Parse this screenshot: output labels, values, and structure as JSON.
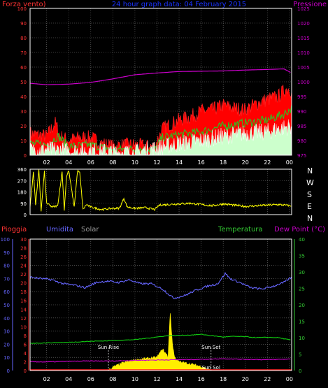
{
  "colors": {
    "background": "#000000",
    "frame": "#ffffff",
    "grid": "#777777",
    "wind": "#ff2020",
    "wind_fill": "#ff0000",
    "gust_band": "#22cc22",
    "gust_fill": "#ccffcc",
    "pressure": "#cc00cc",
    "direction": "#ffff00",
    "humidity": "#6666ff",
    "temperature": "#11cc11",
    "dew_point": "#cc00cc",
    "rain": "#ff2222",
    "solar": "#ffee00",
    "title": "#1a33ff",
    "left_axis_1": "#ff3333",
    "right_axis_1": "#cc00cc",
    "rain_axis": "#ff3333",
    "hum_axis": "#6666ff",
    "temp_axis": "#33cc33",
    "sun_marker": "#ffffff"
  },
  "header": {
    "left_label": "Forza vento)",
    "title": "24 hour graph data: 04 February 2015",
    "right_label": "Pressione"
  },
  "compass": [
    "N",
    "W",
    "S",
    "E",
    "N"
  ],
  "legend2": {
    "pioggia": "Pioggia",
    "umidita": "Umidita",
    "solar": "Solar",
    "temperatura": "Temperatura",
    "dew": "Dew Point (°C)"
  },
  "sun": {
    "rise_label": "Sun Rise",
    "set_label": "Sun Set",
    "solar_label": "Sun Sol",
    "rise_hour": 7.6,
    "set_hour": 16.9
  },
  "chart_data": [
    {
      "type": "area",
      "name": "wind_pressure_panel",
      "x_ticks": [
        "02",
        "04",
        "06",
        "08",
        "10",
        "12",
        "14",
        "16",
        "18",
        "20",
        "22",
        "00"
      ],
      "x_range_hours": [
        0.5,
        24.2
      ],
      "left_axis": {
        "label": "Forza vento)",
        "ticks": [
          0,
          10,
          20,
          30,
          40,
          50,
          60,
          70,
          80,
          90,
          100
        ],
        "range": [
          0,
          100
        ]
      },
      "right_axis": {
        "label": "Pressione",
        "ticks": [
          975,
          980,
          985,
          990,
          995,
          1000,
          1005,
          1010,
          1015,
          1020,
          1025
        ],
        "range": [
          975,
          1025
        ]
      },
      "series": [
        {
          "name": "Pressione",
          "axis": "right",
          "hours": [
            0.5,
            2,
            4,
            6,
            8,
            10,
            12,
            14,
            16,
            18,
            20,
            22,
            23.5,
            24.2
          ],
          "values": [
            999.5,
            999,
            999.2,
            999.8,
            1001,
            1002.4,
            1003,
            1003.5,
            1003.6,
            1003.7,
            1004,
            1004.2,
            1004.4,
            1003
          ]
        },
        {
          "axis": "left",
          "hours": [
            0.5,
            1,
            2,
            2.8,
            3.2,
            4,
            5,
            6,
            7,
            8,
            9,
            10,
            11,
            11.8,
            12.5,
            13,
            14,
            15,
            16,
            17,
            18,
            19,
            20,
            21,
            22,
            23,
            23.5,
            24,
            24.2
          ],
          "values": [
            15,
            14,
            13,
            22,
            13,
            10,
            12,
            12,
            8,
            6,
            7,
            7,
            6,
            6,
            18,
            20,
            24,
            26,
            30,
            31,
            34,
            32,
            31,
            35,
            38,
            40,
            44,
            46,
            42
          ]
        },
        {
          "axis": "left",
          "hours": [
            0.5,
            2,
            3,
            4,
            6,
            8,
            10,
            11.8,
            12.5,
            14,
            16,
            18,
            20,
            22,
            23.5,
            24.2
          ],
          "values": [
            8,
            7,
            13,
            6,
            7,
            4,
            4,
            4,
            12,
            14,
            16,
            20,
            22,
            24,
            28,
            32
          ]
        },
        {
          "axis": "left",
          "hours": [
            0.5,
            2,
            4,
            6,
            8,
            10,
            12,
            14,
            16,
            18,
            20,
            22,
            24.2
          ],
          "values": [
            3,
            4,
            3,
            3,
            2,
            2,
            5,
            8,
            10,
            13,
            15,
            16,
            20
          ]
        }
      ]
    },
    {
      "type": "line",
      "name": "wind_direction_panel",
      "x_ticks": [
        "02",
        "04",
        "06",
        "08",
        "10",
        "12",
        "14",
        "16",
        "18",
        "20",
        "22",
        "00"
      ],
      "left_axis": {
        "ticks": [
          0,
          90,
          180,
          270,
          360
        ],
        "range": [
          0,
          360
        ]
      },
      "right_axis": {
        "ticks": [
          "N",
          "W",
          "S",
          "E",
          "N"
        ]
      },
      "series": [
        {
          "hours": [
            0.5,
            0.8,
            1.0,
            1.3,
            1.5,
            1.8,
            2.0,
            2.5,
            3.0,
            3.4,
            3.6,
            3.8,
            4.0,
            4.5,
            4.8,
            5.0,
            5.3,
            5.6,
            6.0,
            7.0,
            8.0,
            8.6,
            9.0,
            9.3,
            10.0,
            11.0,
            11.8,
            12.2,
            13,
            14,
            15,
            16,
            17,
            18,
            19,
            20,
            21,
            22,
            23,
            24.2
          ],
          "values": [
            60,
            340,
            80,
            350,
            30,
            340,
            90,
            60,
            70,
            340,
            40,
            300,
            350,
            60,
            350,
            330,
            40,
            80,
            60,
            40,
            50,
            50,
            130,
            60,
            50,
            55,
            40,
            75,
            80,
            85,
            90,
            80,
            70,
            85,
            75,
            65,
            70,
            75,
            80,
            70
          ]
        }
      ]
    },
    {
      "type": "line",
      "name": "temperature_humidity_panel",
      "x_ticks": [
        "02",
        "04",
        "06",
        "08",
        "10",
        "12",
        "14",
        "16",
        "18",
        "20",
        "22",
        "00"
      ],
      "rain_axis": {
        "label": "Pioggia",
        "ticks": [
          0,
          2,
          4,
          6,
          8,
          10,
          12,
          14,
          16,
          18,
          20,
          22,
          24,
          26,
          28,
          30
        ],
        "range": [
          0,
          30
        ]
      },
      "humidity_axis": {
        "label": "Umidita",
        "ticks": [
          0,
          10,
          20,
          30,
          40,
          50,
          60,
          70,
          80,
          90,
          100
        ],
        "range": [
          0,
          100
        ]
      },
      "temperature_axis": {
        "label": "Temperatura",
        "ticks": [
          0,
          5,
          10,
          15,
          20,
          25,
          30,
          35,
          40
        ],
        "range": [
          0,
          40
        ]
      },
      "series": [
        {
          "name": "Umidita",
          "hours": [
            0.5,
            1.5,
            2.5,
            3.5,
            4.5,
            5.5,
            6.5,
            7.5,
            8.5,
            9.5,
            10.5,
            11.5,
            12.5,
            13.5,
            14.5,
            15.5,
            16.5,
            17.5,
            18.2,
            18.6,
            19.5,
            20.5,
            21.5,
            22.5,
            23.5,
            24.2
          ],
          "values": [
            71,
            70,
            69,
            66,
            65,
            63,
            67,
            68,
            67,
            69,
            66,
            66,
            62,
            55,
            57,
            61,
            64,
            66,
            74,
            70,
            67,
            63,
            62,
            64,
            67,
            71
          ]
        },
        {
          "name": "Temperatura",
          "hours": [
            0.5,
            2,
            4,
            6,
            8,
            10,
            12,
            13,
            14,
            15,
            16,
            17,
            18,
            19,
            20,
            21,
            22,
            23,
            24.2
          ],
          "values": [
            8.3,
            8.4,
            8.6,
            8.9,
            9.1,
            9.4,
            10.2,
            10.6,
            10.7,
            10.8,
            11.0,
            10.6,
            10.2,
            10.4,
            10.3,
            10.0,
            10.1,
            10.0,
            9.2
          ]
        },
        {
          "name": "Dew Point (°C)",
          "hours": [
            0.5,
            2,
            4,
            6,
            8,
            10,
            12,
            14,
            16,
            18,
            20,
            22,
            24.2
          ],
          "values": [
            2.7,
            2.6,
            2.8,
            2.9,
            2.9,
            3.1,
            3.2,
            3.3,
            3.4,
            3.6,
            3.4,
            3.3,
            3.5
          ]
        },
        {
          "name": "Solar",
          "hours": [
            7.6,
            8,
            9,
            10,
            11,
            12,
            12.5,
            13,
            13.2,
            13.4,
            13.6,
            14,
            15,
            16,
            16.9
          ],
          "values": [
            0,
            1.0,
            2.4,
            3.2,
            3.6,
            4.0,
            6.5,
            4.2,
            17.5,
            8.0,
            4.0,
            2.6,
            2.0,
            1.2,
            0
          ]
        },
        {
          "name": "Pioggia",
          "hours": [
            0.5,
            24.2
          ],
          "values": [
            0,
            0
          ]
        }
      ]
    }
  ]
}
